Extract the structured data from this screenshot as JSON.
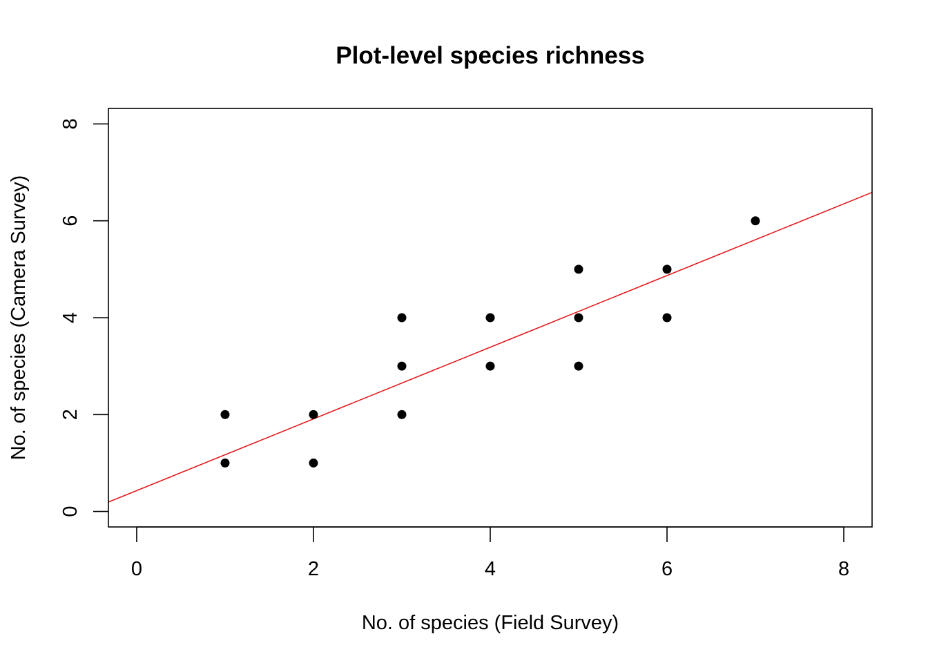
{
  "chart_data": {
    "type": "scatter",
    "title": "Plot-level species richness",
    "xlabel": "No. of species (Field Survey)",
    "ylabel": "No. of species (Camera Survey)",
    "xlim": [
      -0.32,
      8.32
    ],
    "ylim": [
      -0.32,
      8.32
    ],
    "xticks": [
      "0",
      "2",
      "4",
      "6",
      "8"
    ],
    "yticks": [
      "0",
      "2",
      "4",
      "6",
      "8"
    ],
    "grid": false,
    "point_color": "#000000",
    "points": [
      {
        "x": 1,
        "y": 2
      },
      {
        "x": 1,
        "y": 1
      },
      {
        "x": 2,
        "y": 2
      },
      {
        "x": 2,
        "y": 1
      },
      {
        "x": 3,
        "y": 4
      },
      {
        "x": 3,
        "y": 3
      },
      {
        "x": 3,
        "y": 2
      },
      {
        "x": 4,
        "y": 4
      },
      {
        "x": 4,
        "y": 3
      },
      {
        "x": 5,
        "y": 5
      },
      {
        "x": 5,
        "y": 4
      },
      {
        "x": 5,
        "y": 3
      },
      {
        "x": 6,
        "y": 5
      },
      {
        "x": 6,
        "y": 4
      },
      {
        "x": 7,
        "y": 6
      }
    ],
    "regression_line": {
      "intercept": 0.43,
      "slope": 0.74,
      "color": "#e31a1c"
    }
  }
}
